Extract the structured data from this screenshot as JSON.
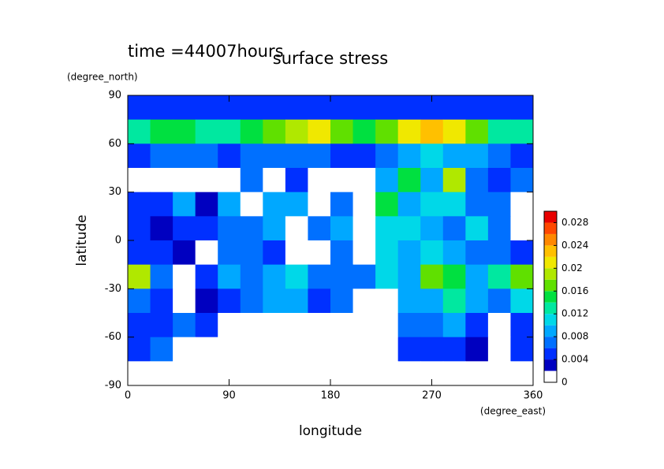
{
  "chart_data": {
    "type": "heatmap",
    "title": "surface stress",
    "subtitle": "time =44007hours",
    "xlabel": "longitude",
    "xunit": "(degree_east)",
    "ylabel": "latitude",
    "yunit": "(degree_north)",
    "xlim": [
      0,
      360
    ],
    "xticks": [
      0,
      90,
      180,
      270,
      360
    ],
    "ylim": [
      -90,
      90
    ],
    "yticks": [
      -90,
      -60,
      -30,
      0,
      30,
      60,
      90
    ],
    "x": [
      10,
      30,
      50,
      70,
      90,
      110,
      130,
      150,
      170,
      190,
      210,
      230,
      250,
      270,
      290,
      310,
      330,
      350
    ],
    "y": [
      82.5,
      67.5,
      52.5,
      37.5,
      22.5,
      7.5,
      -7.5,
      -22.5,
      -37.5,
      -52.5,
      -67.5,
      -82.5
    ],
    "z": [
      [
        0.005,
        0.005,
        0.005,
        0.005,
        0.005,
        0.005,
        0.005,
        0.005,
        0.005,
        0.005,
        0.005,
        0.005,
        0.005,
        0.005,
        0.005,
        0.005,
        0.005,
        0.005
      ],
      [
        0.012,
        0.014,
        0.014,
        0.012,
        0.012,
        0.014,
        0.016,
        0.018,
        0.02,
        0.016,
        0.014,
        0.016,
        0.02,
        0.022,
        0.02,
        0.016,
        0.012,
        0.012
      ],
      [
        0.004,
        0.006,
        0.006,
        0.006,
        0.005,
        0.006,
        0.006,
        0.006,
        0.006,
        0.004,
        0.004,
        0.006,
        0.008,
        0.01,
        0.008,
        0.008,
        0.006,
        0.004
      ],
      [
        0,
        0,
        0,
        0,
        0,
        0.006,
        0,
        0.004,
        0,
        0,
        0,
        0.008,
        0.014,
        0.008,
        0.018,
        0.006,
        0.004,
        0.006
      ],
      [
        0.004,
        0.004,
        0.008,
        0.002,
        0.008,
        0,
        0.008,
        0.008,
        0,
        0.006,
        0,
        0.014,
        0.008,
        0.01,
        0.01,
        0.006,
        0.006,
        0
      ],
      [
        0.004,
        0.002,
        0.004,
        0.004,
        0.006,
        0.006,
        0.008,
        0,
        0.006,
        0.008,
        0,
        0.01,
        0.01,
        0.008,
        0.006,
        0.01,
        0.006,
        0
      ],
      [
        0.004,
        0.004,
        0.002,
        0,
        0.006,
        0.006,
        0.004,
        0,
        0,
        0.006,
        0,
        0.01,
        0.008,
        0.01,
        0.008,
        0.006,
        0.006,
        0.004
      ],
      [
        0.018,
        0.006,
        0,
        0.004,
        0.008,
        0.006,
        0.008,
        0.01,
        0.006,
        0.006,
        0.006,
        0.01,
        0.008,
        0.016,
        0.014,
        0.008,
        0.012,
        0.016
      ],
      [
        0.006,
        0.004,
        0,
        0.002,
        0.004,
        0.006,
        0.008,
        0.008,
        0.004,
        0.006,
        0,
        0,
        0.008,
        0.008,
        0.012,
        0.008,
        0.006,
        0.01
      ],
      [
        0.004,
        0.004,
        0.006,
        0.004,
        0,
        0,
        0,
        0,
        0,
        0,
        0,
        0,
        0.006,
        0.006,
        0.008,
        0.004,
        0,
        0.004
      ],
      [
        0.004,
        0.006,
        0,
        0,
        0,
        0,
        0,
        0,
        0,
        0,
        0,
        0,
        0.004,
        0.004,
        0.004,
        0.002,
        0,
        0.004
      ],
      [
        0,
        0,
        0,
        0,
        0,
        0,
        0,
        0,
        0,
        0,
        0,
        0,
        0,
        0,
        0,
        0,
        0,
        0
      ]
    ],
    "levels": [
      0,
      0.002,
      0.004,
      0.006,
      0.008,
      0.01,
      0.012,
      0.014,
      0.016,
      0.018,
      0.02,
      0.022,
      0.024,
      0.026,
      0.028,
      0.03
    ],
    "colors": [
      "#ffffff",
      "#0000c0",
      "#0030ff",
      "#0070ff",
      "#00a8ff",
      "#00d8e8",
      "#00e8a0",
      "#00e040",
      "#60e000",
      "#b0e800",
      "#f0e800",
      "#ffc000",
      "#ff8800",
      "#ff4800",
      "#e80000"
    ],
    "cticks": [
      0,
      0.004,
      0.008,
      0.012,
      0.016,
      0.02,
      0.024,
      0.028
    ]
  }
}
